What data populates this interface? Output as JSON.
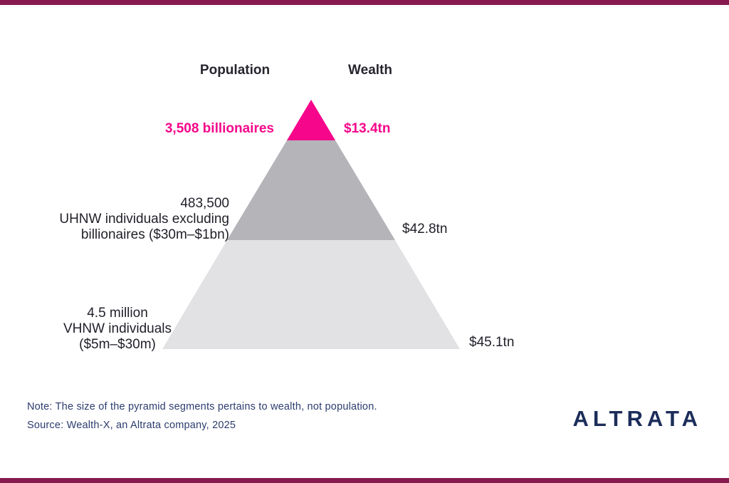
{
  "theme": {
    "accent_bar_color": "#871a4f",
    "brand_navy": "#1c2d5a",
    "pink": "#f5068a",
    "mid_gray": "#b5b4b9",
    "light_gray": "#e2e2e5"
  },
  "header": {
    "population_label": "Population",
    "wealth_label": "Wealth"
  },
  "chart_data": {
    "type": "pyramid",
    "title": "",
    "columns": [
      "Population",
      "Wealth"
    ],
    "legend_position": "none",
    "segments": [
      {
        "id": "billionaires",
        "population_label": "3,508 billionaires",
        "population_value": 3508,
        "wealth_label": "$13.4tn",
        "wealth_value_tn": 13.4,
        "color": "#f5068a",
        "text_color": "#f5068a"
      },
      {
        "id": "uhnw",
        "population_label": "483,500\nUHNW individuals excluding\nbillionaires ($30m–$1bn)",
        "population_value": 483500,
        "wealth_label": "$42.8tn",
        "wealth_value_tn": 42.8,
        "color": "#b5b4b9",
        "text_color": "#1f1f28"
      },
      {
        "id": "vhnw",
        "population_label": "4.5 million\nVHNW individuals\n($5m–$30m)",
        "population_value": 4500000,
        "wealth_label": "$45.1tn",
        "wealth_value_tn": 45.1,
        "color": "#e2e2e5",
        "text_color": "#1f1f28"
      }
    ],
    "note": "Note: The size of the pyramid segments pertains to wealth, not population.",
    "source": "Source: Wealth-X, an Altrata company, 2025"
  },
  "footer": {
    "note": "Note: The size of the pyramid segments pertains to wealth, not population.",
    "source": "Source: Wealth-X, an Altrata company, 2025",
    "logo_text": "ALTRATA"
  }
}
